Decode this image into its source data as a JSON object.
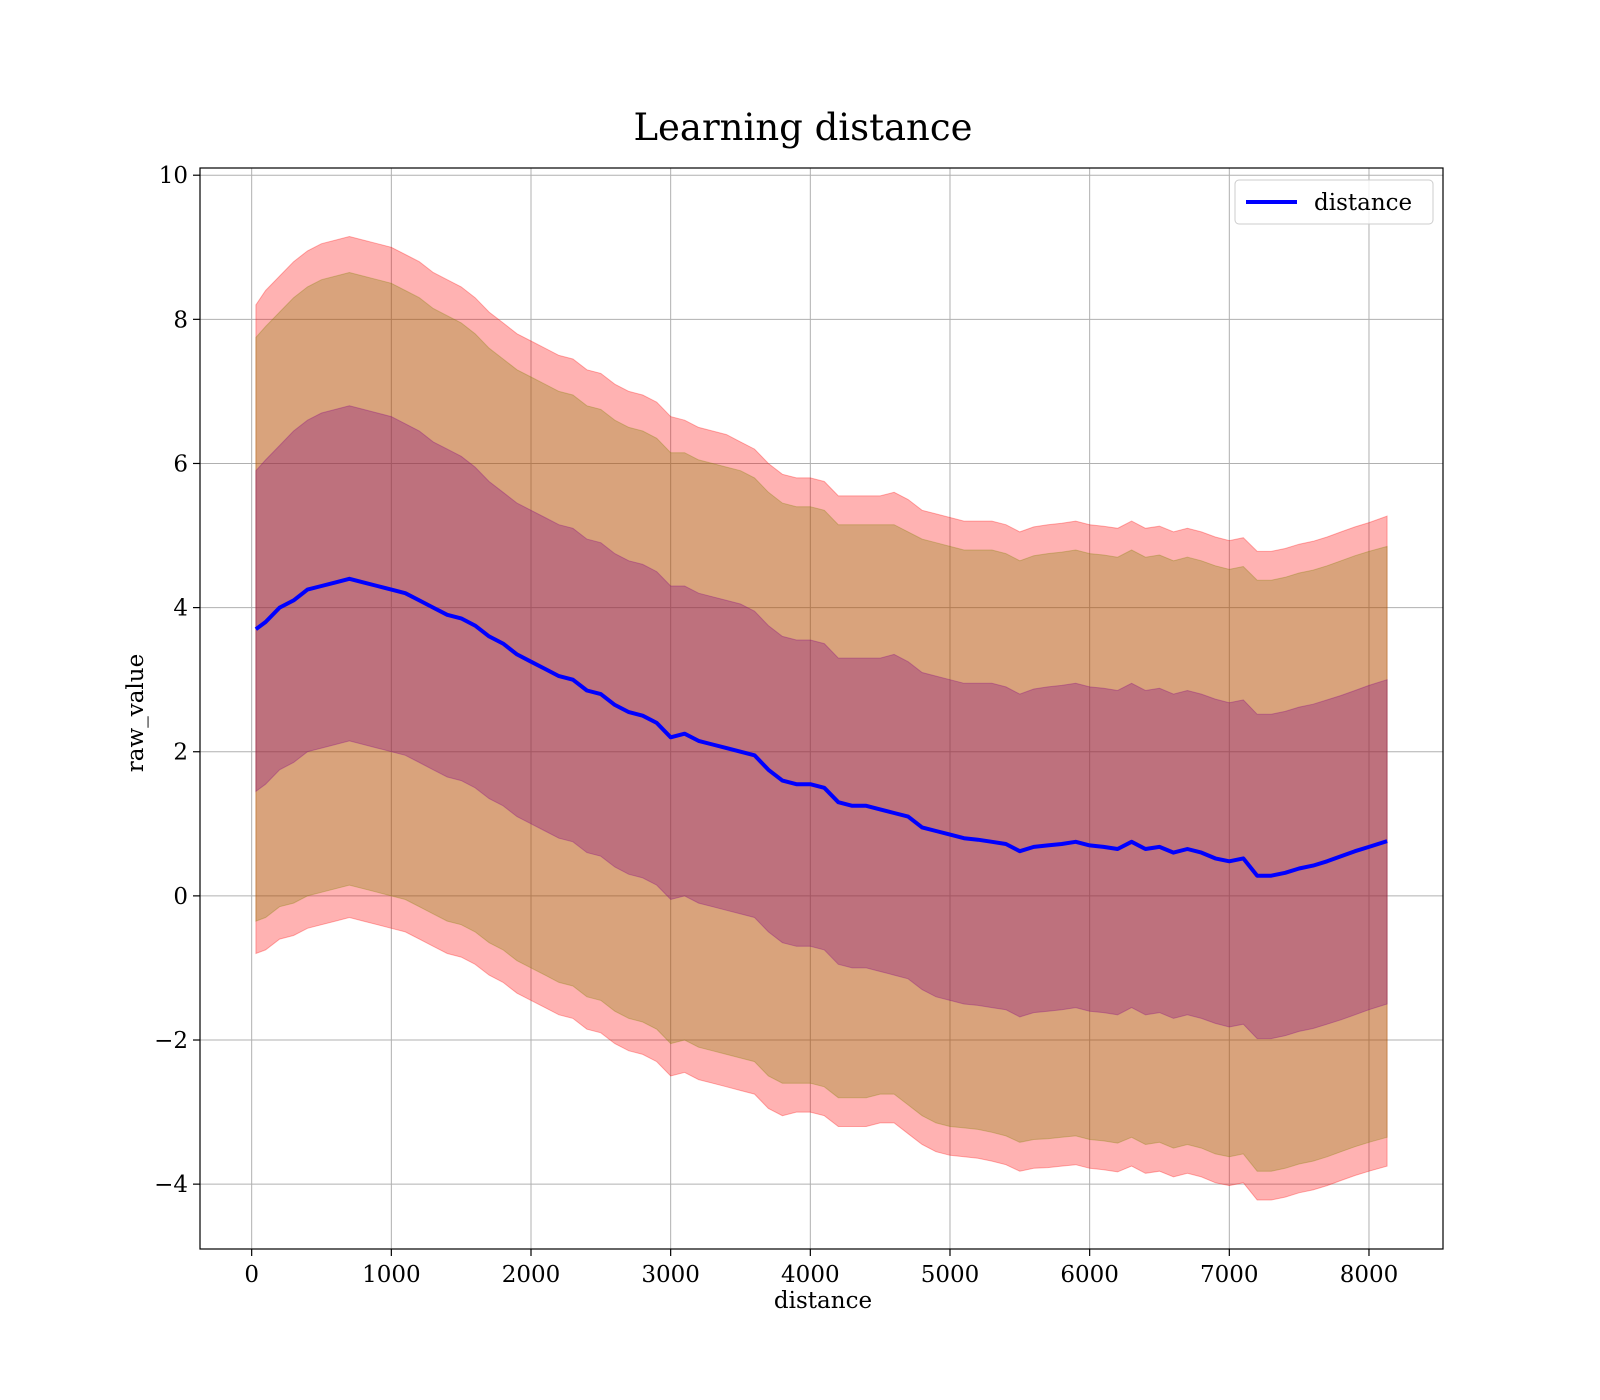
{
  "chart_data": {
    "type": "area",
    "title": "Learning distance",
    "xlabel": "distance",
    "ylabel": "raw_value",
    "xlim": [
      -370,
      8530
    ],
    "ylim": [
      -4.9,
      10.1
    ],
    "xticks": [
      0,
      1000,
      2000,
      3000,
      4000,
      5000,
      6000,
      7000,
      8000
    ],
    "xtick_labels": [
      "0",
      "1000",
      "2000",
      "3000",
      "4000",
      "5000",
      "6000",
      "7000",
      "8000"
    ],
    "yticks": [
      -4,
      -2,
      0,
      2,
      4,
      6,
      8,
      10
    ],
    "ytick_labels": [
      "−4",
      "−2",
      "0",
      "2",
      "4",
      "6",
      "8",
      "10"
    ],
    "grid": true,
    "legend_position": "upper right",
    "series": [
      {
        "name": "distance",
        "role": "mean",
        "color": "#0000ff",
        "x": [
          30,
          100,
          200,
          300,
          400,
          500,
          600,
          700,
          800,
          900,
          1000,
          1100,
          1200,
          1300,
          1400,
          1500,
          1600,
          1700,
          1800,
          1900,
          2000,
          2100,
          2200,
          2300,
          2400,
          2500,
          2600,
          2700,
          2800,
          2900,
          3000,
          3100,
          3200,
          3300,
          3400,
          3500,
          3600,
          3700,
          3800,
          3900,
          4000,
          4100,
          4200,
          4300,
          4400,
          4500,
          4600,
          4700,
          4800,
          4900,
          5000,
          5100,
          5200,
          5300,
          5400,
          5500,
          5600,
          5700,
          5800,
          5900,
          6000,
          6100,
          6200,
          6300,
          6400,
          6500,
          6600,
          6700,
          6800,
          6900,
          7000,
          7100,
          7200,
          7300,
          7400,
          7500,
          7600,
          7700,
          7800,
          7900,
          8000,
          8130
        ],
        "values": [
          3.7,
          3.8,
          4.0,
          4.1,
          4.25,
          4.3,
          4.35,
          4.4,
          4.35,
          4.3,
          4.25,
          4.2,
          4.1,
          4.0,
          3.9,
          3.85,
          3.75,
          3.6,
          3.5,
          3.35,
          3.25,
          3.15,
          3.05,
          3.0,
          2.85,
          2.8,
          2.65,
          2.55,
          2.5,
          2.4,
          2.2,
          2.25,
          2.15,
          2.1,
          2.05,
          2.0,
          1.95,
          1.75,
          1.6,
          1.55,
          1.55,
          1.5,
          1.3,
          1.25,
          1.25,
          1.2,
          1.15,
          1.1,
          0.95,
          0.9,
          0.85,
          0.8,
          0.78,
          0.75,
          0.72,
          0.62,
          0.68,
          0.7,
          0.72,
          0.75,
          0.7,
          0.68,
          0.65,
          0.75,
          0.65,
          0.68,
          0.6,
          0.65,
          0.6,
          0.52,
          0.48,
          0.52,
          0.28,
          0.28,
          0.32,
          0.38,
          0.42,
          0.48,
          0.55,
          0.62,
          0.68,
          0.76
        ]
      },
      {
        "name": "",
        "role": "band-3sd",
        "color": "#ff0000",
        "opacity": 0.3,
        "upper": [
          8.2,
          8.4,
          8.6,
          8.8,
          8.95,
          9.05,
          9.1,
          9.15,
          9.1,
          9.05,
          9.0,
          8.9,
          8.8,
          8.65,
          8.55,
          8.45,
          8.3,
          8.1,
          7.95,
          7.8,
          7.7,
          7.6,
          7.5,
          7.45,
          7.3,
          7.25,
          7.1,
          7.0,
          6.95,
          6.85,
          6.65,
          6.6,
          6.5,
          6.45,
          6.4,
          6.3,
          6.2,
          6.0,
          5.85,
          5.8,
          5.8,
          5.75,
          5.55,
          5.55,
          5.55,
          5.55,
          5.6,
          5.5,
          5.35,
          5.3,
          5.25,
          5.2,
          5.2,
          5.2,
          5.15,
          5.05,
          5.12,
          5.15,
          5.17,
          5.2,
          5.15,
          5.13,
          5.1,
          5.2,
          5.1,
          5.13,
          5.05,
          5.1,
          5.05,
          4.98,
          4.93,
          4.97,
          4.78,
          4.78,
          4.82,
          4.88,
          4.92,
          4.98,
          5.05,
          5.12,
          5.18,
          5.27
        ],
        "lower": [
          -0.8,
          -0.75,
          -0.6,
          -0.55,
          -0.45,
          -0.4,
          -0.35,
          -0.3,
          -0.35,
          -0.4,
          -0.45,
          -0.5,
          -0.6,
          -0.7,
          -0.8,
          -0.85,
          -0.95,
          -1.1,
          -1.2,
          -1.35,
          -1.45,
          -1.55,
          -1.65,
          -1.7,
          -1.85,
          -1.9,
          -2.05,
          -2.15,
          -2.2,
          -2.3,
          -2.5,
          -2.45,
          -2.55,
          -2.6,
          -2.65,
          -2.7,
          -2.75,
          -2.95,
          -3.05,
          -3.0,
          -3.0,
          -3.05,
          -3.2,
          -3.2,
          -3.2,
          -3.15,
          -3.15,
          -3.3,
          -3.45,
          -3.55,
          -3.6,
          -3.62,
          -3.64,
          -3.68,
          -3.73,
          -3.82,
          -3.78,
          -3.77,
          -3.75,
          -3.73,
          -3.78,
          -3.8,
          -3.83,
          -3.75,
          -3.85,
          -3.82,
          -3.9,
          -3.85,
          -3.9,
          -3.98,
          -4.02,
          -3.98,
          -4.22,
          -4.22,
          -4.18,
          -4.12,
          -4.08,
          -4.02,
          -3.95,
          -3.88,
          -3.82,
          -3.75
        ]
      },
      {
        "name": "",
        "role": "band-2sd",
        "color": "#808000",
        "opacity": 0.3,
        "upper": [
          7.75,
          7.9,
          8.1,
          8.3,
          8.45,
          8.55,
          8.6,
          8.65,
          8.6,
          8.55,
          8.5,
          8.4,
          8.3,
          8.15,
          8.05,
          7.95,
          7.8,
          7.6,
          7.45,
          7.3,
          7.2,
          7.1,
          7.0,
          6.95,
          6.8,
          6.75,
          6.6,
          6.5,
          6.45,
          6.35,
          6.15,
          6.15,
          6.05,
          6.0,
          5.95,
          5.9,
          5.8,
          5.6,
          5.45,
          5.4,
          5.4,
          5.35,
          5.15,
          5.15,
          5.15,
          5.15,
          5.15,
          5.05,
          4.95,
          4.9,
          4.85,
          4.8,
          4.8,
          4.8,
          4.75,
          4.65,
          4.72,
          4.75,
          4.77,
          4.8,
          4.75,
          4.73,
          4.7,
          4.8,
          4.7,
          4.73,
          4.65,
          4.7,
          4.65,
          4.58,
          4.53,
          4.57,
          4.38,
          4.38,
          4.42,
          4.48,
          4.52,
          4.58,
          4.65,
          4.72,
          4.78,
          4.85
        ],
        "lower": [
          -0.35,
          -0.3,
          -0.15,
          -0.1,
          0.0,
          0.05,
          0.1,
          0.15,
          0.1,
          0.05,
          0.0,
          -0.05,
          -0.15,
          -0.25,
          -0.35,
          -0.4,
          -0.5,
          -0.65,
          -0.75,
          -0.9,
          -1.0,
          -1.1,
          -1.2,
          -1.25,
          -1.4,
          -1.45,
          -1.6,
          -1.7,
          -1.75,
          -1.85,
          -2.05,
          -2.0,
          -2.1,
          -2.15,
          -2.2,
          -2.25,
          -2.3,
          -2.5,
          -2.6,
          -2.6,
          -2.6,
          -2.65,
          -2.8,
          -2.8,
          -2.8,
          -2.75,
          -2.75,
          -2.9,
          -3.05,
          -3.15,
          -3.2,
          -3.22,
          -3.24,
          -3.28,
          -3.33,
          -3.42,
          -3.38,
          -3.37,
          -3.35,
          -3.33,
          -3.38,
          -3.4,
          -3.43,
          -3.35,
          -3.45,
          -3.42,
          -3.5,
          -3.45,
          -3.5,
          -3.58,
          -3.62,
          -3.58,
          -3.82,
          -3.82,
          -3.78,
          -3.72,
          -3.68,
          -3.62,
          -3.55,
          -3.48,
          -3.42,
          -3.35
        ]
      },
      {
        "name": "",
        "role": "band-1sd",
        "color": "#800080",
        "opacity": 0.3,
        "upper": [
          5.9,
          6.05,
          6.25,
          6.45,
          6.6,
          6.7,
          6.75,
          6.8,
          6.75,
          6.7,
          6.65,
          6.55,
          6.45,
          6.3,
          6.2,
          6.1,
          5.95,
          5.75,
          5.6,
          5.45,
          5.35,
          5.25,
          5.15,
          5.1,
          4.95,
          4.9,
          4.75,
          4.65,
          4.6,
          4.5,
          4.3,
          4.3,
          4.2,
          4.15,
          4.1,
          4.05,
          3.95,
          3.75,
          3.6,
          3.55,
          3.55,
          3.5,
          3.3,
          3.3,
          3.3,
          3.3,
          3.35,
          3.25,
          3.1,
          3.05,
          3.0,
          2.95,
          2.95,
          2.95,
          2.9,
          2.8,
          2.87,
          2.9,
          2.92,
          2.95,
          2.9,
          2.88,
          2.85,
          2.95,
          2.85,
          2.88,
          2.8,
          2.85,
          2.8,
          2.73,
          2.68,
          2.72,
          2.52,
          2.52,
          2.56,
          2.62,
          2.66,
          2.72,
          2.78,
          2.85,
          2.92,
          3.0
        ],
        "lower": [
          1.45,
          1.55,
          1.75,
          1.85,
          2.0,
          2.05,
          2.1,
          2.15,
          2.1,
          2.05,
          2.0,
          1.95,
          1.85,
          1.75,
          1.65,
          1.6,
          1.5,
          1.35,
          1.25,
          1.1,
          1.0,
          0.9,
          0.8,
          0.75,
          0.6,
          0.55,
          0.4,
          0.3,
          0.25,
          0.15,
          -0.05,
          0.0,
          -0.1,
          -0.15,
          -0.2,
          -0.25,
          -0.3,
          -0.5,
          -0.65,
          -0.7,
          -0.7,
          -0.75,
          -0.95,
          -1.0,
          -1.0,
          -1.05,
          -1.1,
          -1.15,
          -1.3,
          -1.4,
          -1.45,
          -1.5,
          -1.52,
          -1.55,
          -1.58,
          -1.68,
          -1.62,
          -1.6,
          -1.58,
          -1.55,
          -1.6,
          -1.62,
          -1.65,
          -1.55,
          -1.65,
          -1.62,
          -1.7,
          -1.65,
          -1.7,
          -1.77,
          -1.82,
          -1.78,
          -1.98,
          -1.98,
          -1.94,
          -1.88,
          -1.84,
          -1.78,
          -1.72,
          -1.65,
          -1.58,
          -1.5
        ]
      }
    ]
  }
}
